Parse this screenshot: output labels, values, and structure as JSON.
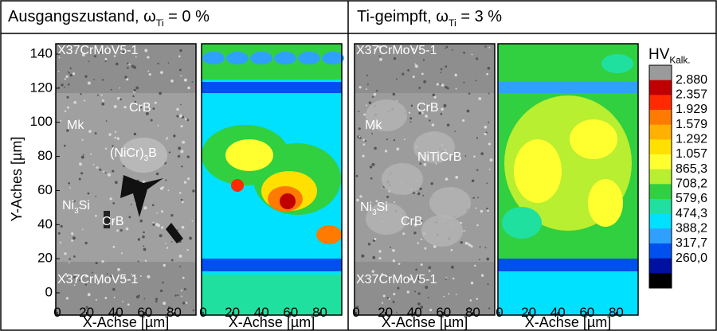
{
  "panels": [
    {
      "title": {
        "text": "Ausgangszustand, ω",
        "sub": "Ti",
        "rest": " = 0 %"
      },
      "annotations": [
        {
          "text": "X37CrMoV5-1"
        },
        {
          "text": "CrB"
        },
        {
          "text": "Mk"
        },
        {
          "text": "(NiCr)",
          "sub": "3",
          "rest": "B"
        },
        {
          "text": "Ni",
          "sub": "3",
          "rest": "Si"
        },
        {
          "text": "CrB"
        },
        {
          "text": "X37CrMoV5-1"
        }
      ]
    },
    {
      "title": {
        "text": "Ti-geimpft, ω",
        "sub": "Ti",
        "rest": " = 3 %"
      },
      "annotations": [
        {
          "text": "X37CrMoV5-1"
        },
        {
          "text": "CrB"
        },
        {
          "text": "Mk"
        },
        {
          "text": "NiTiCrB"
        },
        {
          "text": "Ni",
          "sub": "3",
          "rest": "Si"
        },
        {
          "text": "CrB"
        },
        {
          "text": "X37CrMoV5-1"
        }
      ]
    }
  ],
  "y_axis": {
    "label": "Y-Aches [µm]",
    "ticks": [
      0,
      20,
      40,
      60,
      80,
      100,
      120,
      140
    ]
  },
  "x_axis": {
    "label": "X-Achse [µm]",
    "ticks": [
      0,
      20,
      40,
      60,
      80
    ]
  },
  "colorbar": {
    "title": {
      "text": "HV",
      "sub": "Kalk."
    },
    "labels": [
      "2.880",
      "2.357",
      "1.929",
      "1.579",
      "1.292",
      "1.057",
      "865,3",
      "708,2",
      "579,6",
      "474,3",
      "388,2",
      "317,7",
      "260,0"
    ],
    "colors": [
      "#9a9a9a",
      "#c00000",
      "#ff2a00",
      "#ff7a00",
      "#ffb000",
      "#ffe000",
      "#ffff30",
      "#b8ef30",
      "#30d040",
      "#20e0a0",
      "#00e0ff",
      "#30a0ff",
      "#0050f0",
      "#0010a0",
      "#000000"
    ]
  }
}
